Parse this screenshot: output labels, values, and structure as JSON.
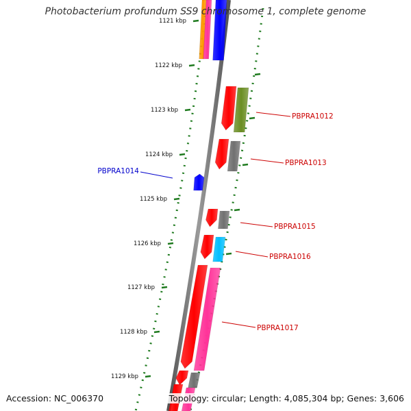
{
  "title": "Photobacterium profundum SS9 chromosome 1, complete genome",
  "accession": "Accession: NC_006370",
  "topology": "Topology: circular; Length: 4,085,304 bp; Genes: 3,606",
  "colors": {
    "backbone": "#7a7a7a",
    "ticks": "#1e7a1e",
    "forward_label": "#cc0000",
    "reverse_label": "#0000cc"
  },
  "ticks": [
    {
      "label": "1121 kbp"
    },
    {
      "label": "1122 kbp"
    },
    {
      "label": "1123 kbp"
    },
    {
      "label": "1124 kbp"
    },
    {
      "label": "1125 kbp"
    },
    {
      "label": "1126 kbp"
    },
    {
      "label": "1127 kbp"
    },
    {
      "label": "1128 kbp"
    },
    {
      "label": "1129 kbp"
    }
  ],
  "gene_labels": [
    {
      "text": "PBPRA1012",
      "strand": "forward"
    },
    {
      "text": "PBPRA1013",
      "strand": "forward"
    },
    {
      "text": "PBPRA1014",
      "strand": "reverse"
    },
    {
      "text": "PBPRA1015",
      "strand": "forward"
    },
    {
      "text": "PBPRA1016",
      "strand": "forward"
    },
    {
      "text": "PBPRA1017",
      "strand": "forward"
    }
  ],
  "features": [
    {
      "name": "gene-block-top-orange",
      "color": "#ff9900"
    },
    {
      "name": "gene-block-top-magenta",
      "color": "#ff3399"
    },
    {
      "name": "gene-block-top-blue",
      "color": "#0000ff"
    },
    {
      "name": "gene-pbpra1012-cds",
      "color": "#ff0000"
    },
    {
      "name": "gene-pbpra1012-cog",
      "color": "#6b8e23"
    },
    {
      "name": "gene-pbpra1013-cds",
      "color": "#ff0000"
    },
    {
      "name": "gene-pbpra1013-cog",
      "color": "#707070"
    },
    {
      "name": "gene-pbpra1014-cds",
      "color": "#0000ff"
    },
    {
      "name": "gene-pbpra1015-cds",
      "color": "#ff0000"
    },
    {
      "name": "gene-pbpra1015-cog",
      "color": "#707070"
    },
    {
      "name": "gene-pbpra1016-cds",
      "color": "#ff0000"
    },
    {
      "name": "gene-pbpra1016-cog",
      "color": "#00bfff"
    },
    {
      "name": "gene-pbpra1017-cds",
      "color": "#ff0000"
    },
    {
      "name": "gene-pbpra1017-cog",
      "color": "#ff3399"
    },
    {
      "name": "gene-bottom-cds",
      "color": "#ff0000"
    },
    {
      "name": "gene-bottom-cog",
      "color": "#707070"
    },
    {
      "name": "gene-bottom2-cds",
      "color": "#ff0000"
    },
    {
      "name": "gene-bottom2-cog",
      "color": "#ff3399"
    }
  ]
}
